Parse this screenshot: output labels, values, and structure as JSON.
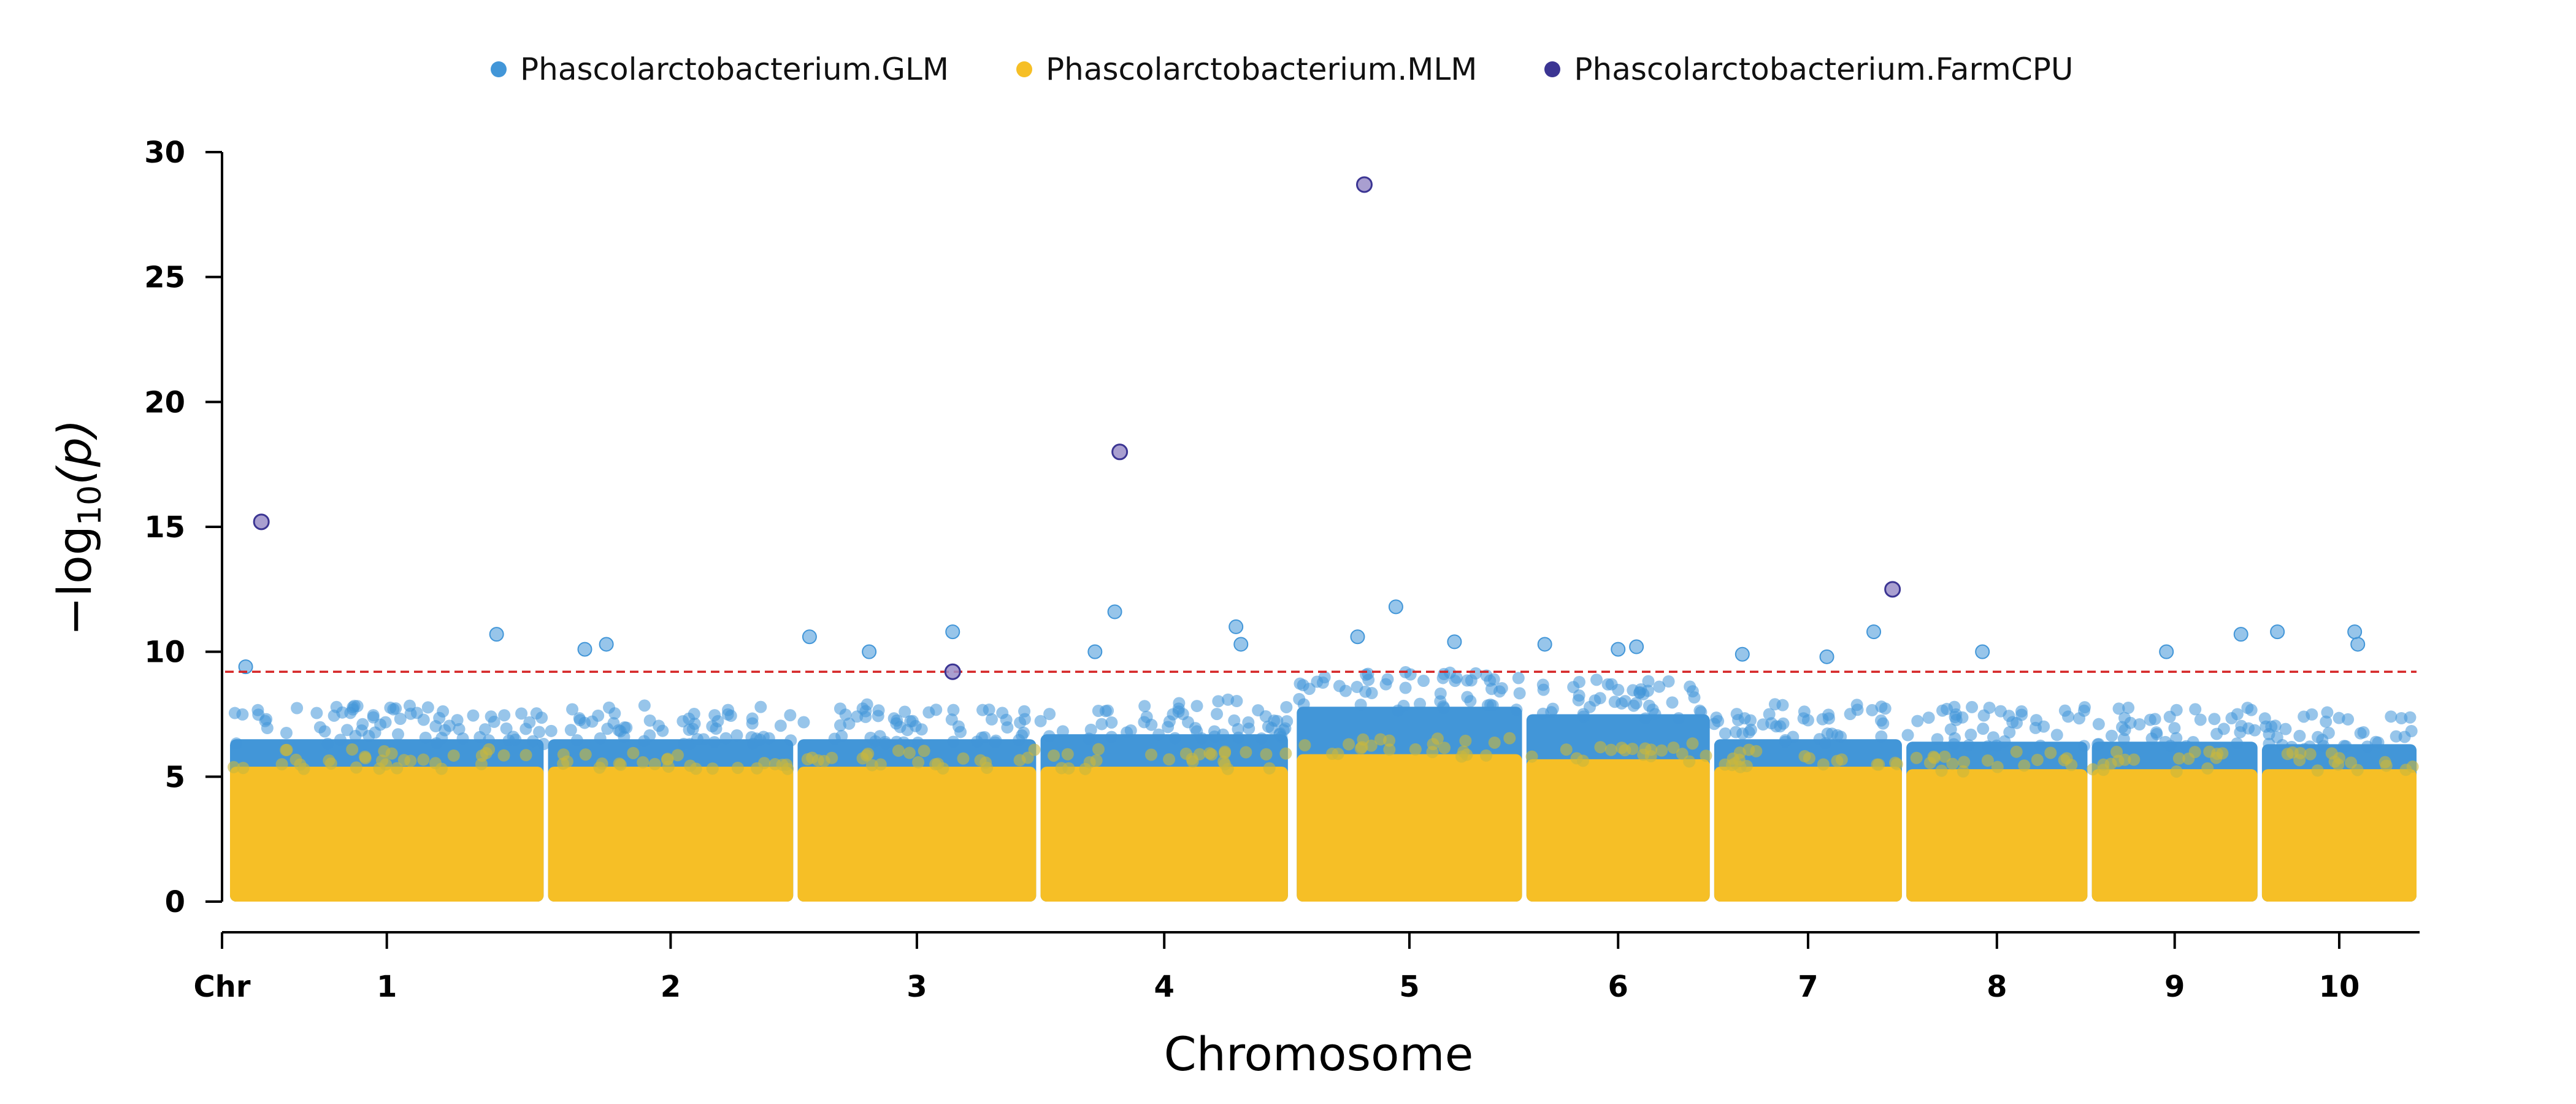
{
  "chart_data": {
    "type": "scatter",
    "subtype": "manhattan",
    "title": "",
    "xlabel": "Chromosome",
    "ylabel": "−log10(p)",
    "ylabel_parts": {
      "prefix": "−log",
      "sub": "10",
      "suffix": "(p)"
    },
    "ylim": [
      0,
      30
    ],
    "yticks": [
      0,
      5,
      10,
      15,
      20,
      25,
      30
    ],
    "x_prefix_label": "Chr",
    "threshold": 9.2,
    "threshold_color": "#d62728",
    "legend_position": "top-center",
    "grid": false,
    "chromosomes": [
      {
        "label": "1",
        "start": 0.0,
        "end": 1.42
      },
      {
        "label": "2",
        "start": 1.44,
        "end": 2.55
      },
      {
        "label": "3",
        "start": 2.57,
        "end": 3.65
      },
      {
        "label": "4",
        "start": 3.67,
        "end": 4.79
      },
      {
        "label": "5",
        "start": 4.83,
        "end": 5.85
      },
      {
        "label": "6",
        "start": 5.87,
        "end": 6.7
      },
      {
        "label": "7",
        "start": 6.72,
        "end": 7.57
      },
      {
        "label": "8",
        "start": 7.59,
        "end": 8.41
      },
      {
        "label": "9",
        "start": 8.43,
        "end": 9.18
      },
      {
        "label": "10",
        "start": 9.2,
        "end": 9.9
      }
    ],
    "series": [
      {
        "name": "Phascolarctobacterium.GLM",
        "color": "#4296d8",
        "chrom_max": [
          7.5,
          7.5,
          7.5,
          7.7,
          8.8,
          8.5,
          7.5,
          7.4,
          7.4,
          7.3
        ],
        "top_hits": [
          {
            "chr": "1",
            "pos": 0.05,
            "p": 9.4
          },
          {
            "chr": "1",
            "pos": 0.85,
            "p": 10.7
          },
          {
            "chr": "1",
            "pos": 1.2,
            "p": 10.3
          },
          {
            "chr": "2",
            "pos": 0.15,
            "p": 10.1
          },
          {
            "chr": "3",
            "pos": 0.05,
            "p": 10.6
          },
          {
            "chr": "3",
            "pos": 0.3,
            "p": 10.0
          },
          {
            "chr": "3",
            "pos": 0.65,
            "p": 10.8
          },
          {
            "chr": "4",
            "pos": 0.22,
            "p": 10.0
          },
          {
            "chr": "4",
            "pos": 0.3,
            "p": 11.6
          },
          {
            "chr": "4",
            "pos": 0.79,
            "p": 11.0
          },
          {
            "chr": "4",
            "pos": 0.81,
            "p": 10.3
          },
          {
            "chr": "5",
            "pos": 0.27,
            "p": 10.6
          },
          {
            "chr": "5",
            "pos": 0.44,
            "p": 11.8
          },
          {
            "chr": "5",
            "pos": 0.7,
            "p": 10.4
          },
          {
            "chr": "6",
            "pos": 0.1,
            "p": 10.3
          },
          {
            "chr": "6",
            "pos": 0.5,
            "p": 10.1
          },
          {
            "chr": "6",
            "pos": 0.6,
            "p": 10.2
          },
          {
            "chr": "7",
            "pos": 0.15,
            "p": 9.9
          },
          {
            "chr": "7",
            "pos": 0.6,
            "p": 9.8
          },
          {
            "chr": "7",
            "pos": 0.85,
            "p": 10.8
          },
          {
            "chr": "8",
            "pos": 0.42,
            "p": 10.0
          },
          {
            "chr": "9",
            "pos": 0.45,
            "p": 10.0
          },
          {
            "chr": "9",
            "pos": 0.9,
            "p": 10.7
          },
          {
            "chr": "10",
            "pos": 0.1,
            "p": 10.8
          },
          {
            "chr": "10",
            "pos": 0.6,
            "p": 10.8
          },
          {
            "chr": "10",
            "pos": 0.62,
            "p": 10.3
          }
        ]
      },
      {
        "name": "Phascolarctobacterium.MLM",
        "color": "#f6bf26",
        "chrom_max": [
          6.0,
          6.0,
          6.0,
          6.0,
          6.5,
          6.3,
          6.0,
          5.9,
          5.9,
          5.9
        ],
        "top_hits": []
      },
      {
        "name": "Phascolarctobacterium.FarmCPU",
        "color": "#3b3593",
        "chrom_max": [],
        "top_hits": [
          {
            "chr": "1",
            "pos": 0.1,
            "p": 15.2
          },
          {
            "chr": "3",
            "pos": 0.65,
            "p": 9.2
          },
          {
            "chr": "4",
            "pos": 0.32,
            "p": 18.0
          },
          {
            "chr": "5",
            "pos": 0.3,
            "p": 28.7
          },
          {
            "chr": "7",
            "pos": 0.95,
            "p": 12.5
          }
        ]
      }
    ]
  }
}
